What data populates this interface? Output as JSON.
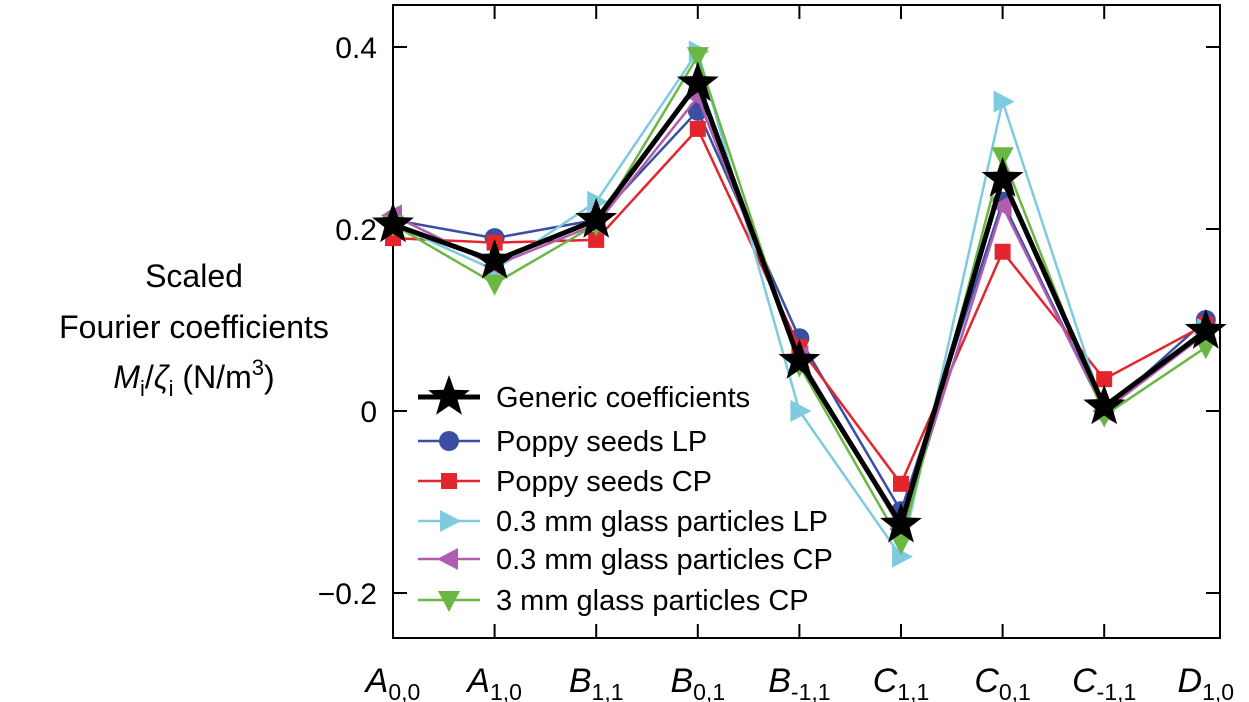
{
  "chart_data": {
    "type": "line",
    "ylabel_lines": [
      "Scaled",
      "Fourier coefficients"
    ],
    "ylabel_expr": {
      "m": "M",
      "m_sub": "i",
      "slash": "/",
      "zeta": "ζ",
      "zeta_sub": "i",
      "unit_open": " (N/m",
      "unit_sup": "3",
      "unit_close": ")"
    },
    "ylim": [
      -0.25,
      0.45
    ],
    "yticks": [
      -0.2,
      0,
      0.2,
      0.4
    ],
    "ytick_labels": [
      "−0.2",
      "0",
      "0.2",
      "0.4"
    ],
    "categories": [
      {
        "main": "A",
        "sub": "0,0"
      },
      {
        "main": "A",
        "sub": "1,0"
      },
      {
        "main": "B",
        "sub": "1,1"
      },
      {
        "main": "B",
        "sub": "0,1"
      },
      {
        "main": "B",
        "sub": "-1,1"
      },
      {
        "main": "C",
        "sub": "1,1"
      },
      {
        "main": "C",
        "sub": "0,1"
      },
      {
        "main": "C",
        "sub": "-1,1"
      },
      {
        "main": "D",
        "sub": "1,0"
      }
    ],
    "legend_position": "lower-left",
    "series": [
      {
        "name": "Poppy seeds LP",
        "color": "#3a4fa3",
        "marker": "circle",
        "values": [
          0.21,
          0.19,
          0.21,
          0.33,
          0.08,
          -0.11,
          0.23,
          0.0,
          0.1
        ]
      },
      {
        "name": "Poppy seeds CP",
        "color": "#e3262d",
        "marker": "square",
        "values": [
          0.19,
          0.185,
          0.188,
          0.31,
          0.07,
          -0.08,
          0.175,
          0.035,
          0.095
        ]
      },
      {
        "name": "0.3 mm glass particles LP",
        "color": "#7ecbe0",
        "marker": "triangle-right",
        "values": [
          0.205,
          0.155,
          0.23,
          0.395,
          0.0,
          -0.16,
          0.34,
          0.0,
          0.09
        ]
      },
      {
        "name": "0.3 mm glass particles CP",
        "color": "#b05cb0",
        "marker": "triangle-left",
        "values": [
          0.215,
          0.16,
          0.205,
          0.345,
          0.06,
          -0.13,
          0.225,
          0.0,
          0.085
        ]
      },
      {
        "name": "3 mm glass particles CP",
        "color": "#6ab843",
        "marker": "triangle-down",
        "values": [
          0.205,
          0.14,
          0.205,
          0.39,
          0.05,
          -0.145,
          0.28,
          -0.005,
          0.07
        ]
      },
      {
        "name": "Generic coefficients",
        "color": "#000000",
        "marker": "star",
        "values": [
          0.205,
          0.165,
          0.21,
          0.36,
          0.055,
          -0.125,
          0.255,
          0.005,
          0.088
        ]
      }
    ],
    "legend_order": [
      "Generic coefficients",
      "Poppy seeds LP",
      "Poppy seeds CP",
      "0.3 mm glass particles LP",
      "0.3 mm glass particles CP",
      "3 mm glass particles CP"
    ]
  }
}
